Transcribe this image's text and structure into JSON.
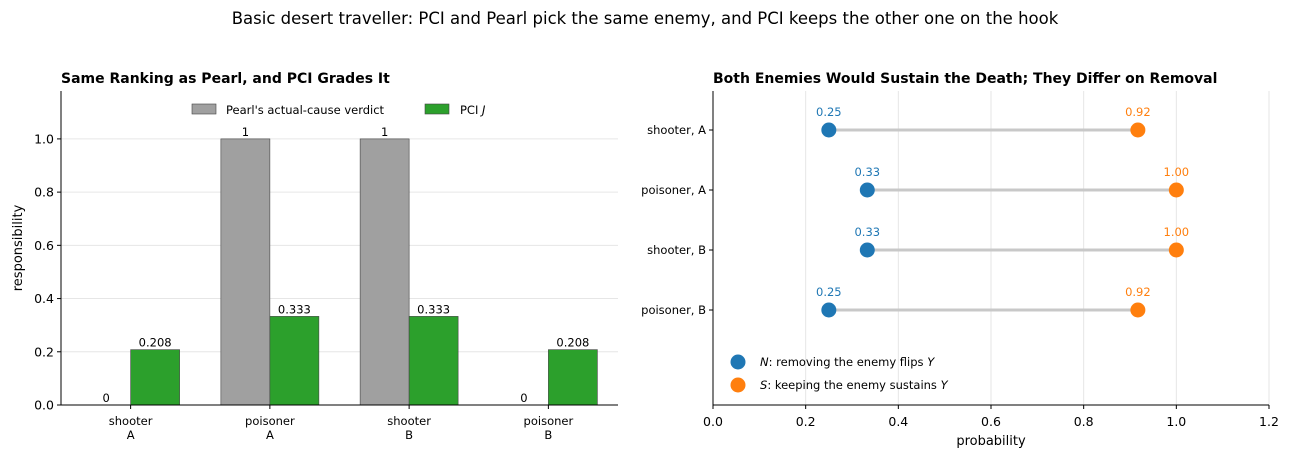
{
  "suptitle": "Basic desert traveller: PCI and Pearl pick the same enemy, and PCI keeps the other one on the hook",
  "colors": {
    "pearl": "#a0a0a0",
    "pci": "#2ca02c",
    "necessity": "#1f77b4",
    "sufficiency": "#ff7f0e",
    "connector": "#c8c8c8",
    "grid": "#e6e6e6"
  },
  "chart_data": [
    {
      "type": "bar",
      "title": "Same Ranking as Pearl, and PCI Grades It",
      "xlabel": "",
      "ylabel": "responsibility",
      "ylim": [
        0,
        1.18
      ],
      "yticks": [
        "0.0",
        "0.2",
        "0.4",
        "0.6",
        "0.8",
        "1.0"
      ],
      "grid": "horizontal",
      "legend_position": "upper-center",
      "categories": [
        "shooter\nA",
        "poisoner\nA",
        "shooter\nB",
        "poisoner\nB"
      ],
      "series": [
        {
          "name": "Pearl's actual-cause verdict",
          "values": [
            0,
            1,
            1,
            0
          ],
          "labels": [
            "0",
            "1",
            "1",
            "0"
          ]
        },
        {
          "name": "PCI J",
          "values": [
            0.208,
            0.333,
            0.333,
            0.208
          ],
          "labels": [
            "0.208",
            "0.333",
            "0.333",
            "0.208"
          ]
        }
      ]
    },
    {
      "type": "dumbbell",
      "title": "Both Enemies Would Sustain the Death; They Differ on Removal",
      "xlabel": "probability",
      "ylabel": "",
      "xlim": [
        0,
        1.2
      ],
      "xticks": [
        "0.0",
        "0.2",
        "0.4",
        "0.6",
        "0.8",
        "1.0",
        "1.2"
      ],
      "grid": "vertical",
      "legend_position": "lower-left",
      "categories": [
        "shooter, A",
        "poisoner, A",
        "shooter, B",
        "poisoner, B"
      ],
      "series": [
        {
          "name": "N: removing the enemy flips Y",
          "values": [
            0.25,
            0.333,
            0.333,
            0.25
          ],
          "labels": [
            "0.25",
            "0.33",
            "0.33",
            "0.25"
          ]
        },
        {
          "name": "S: keeping the enemy sustains Y",
          "values": [
            0.917,
            1.0,
            1.0,
            0.917
          ],
          "labels": [
            "0.92",
            "1.00",
            "1.00",
            "0.92"
          ]
        }
      ]
    }
  ]
}
